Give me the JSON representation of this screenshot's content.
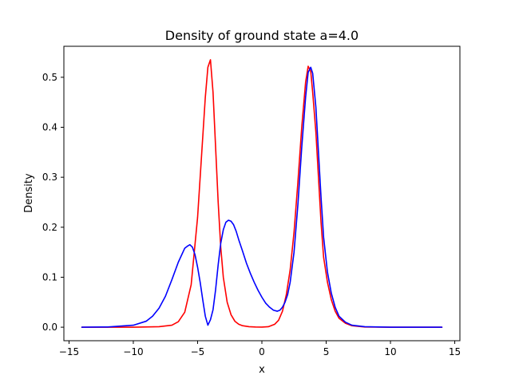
{
  "chart_data": {
    "type": "line",
    "title": "Density of ground state a=4.0",
    "xlabel": "x",
    "ylabel": "Density",
    "xlim": [
      -15.4,
      15.4
    ],
    "ylim": [
      -0.027,
      0.562
    ],
    "grid": false,
    "xticks": [
      -15,
      -10,
      -5,
      0,
      5,
      10,
      15
    ],
    "xtick_labels": [
      "−15",
      "−10",
      "−5",
      "0",
      "5",
      "10",
      "15"
    ],
    "yticks": [
      0.0,
      0.1,
      0.2,
      0.3,
      0.4,
      0.5
    ],
    "ytick_labels": [
      "0.0",
      "0.1",
      "0.2",
      "0.3",
      "0.4",
      "0.5"
    ],
    "series": [
      {
        "name": "red",
        "color": "#ff0000",
        "x": [
          -14,
          -12,
          -10,
          -8,
          -7,
          -6.5,
          -6,
          -5.5,
          -5,
          -4.7,
          -4.4,
          -4.2,
          -4.0,
          -3.8,
          -3.6,
          -3.4,
          -3.2,
          -3.0,
          -2.7,
          -2.4,
          -2.1,
          -1.8,
          -1.5,
          -1.0,
          -0.5,
          0,
          0.5,
          1.0,
          1.3,
          1.6,
          1.9,
          2.2,
          2.5,
          2.8,
          3.1,
          3.4,
          3.6,
          3.8,
          3.95,
          4.2,
          4.4,
          4.6,
          4.8,
          5.1,
          5.4,
          5.7,
          6.0,
          6.5,
          7.0,
          8.0,
          10.0,
          12.0,
          14.0
        ],
        "values": [
          0.0,
          0.0,
          0.0,
          0.001,
          0.004,
          0.011,
          0.03,
          0.085,
          0.22,
          0.34,
          0.46,
          0.52,
          0.535,
          0.47,
          0.36,
          0.25,
          0.16,
          0.1,
          0.05,
          0.025,
          0.012,
          0.006,
          0.003,
          0.001,
          0.0005,
          0.0003,
          0.001,
          0.006,
          0.014,
          0.032,
          0.065,
          0.115,
          0.19,
          0.29,
          0.4,
          0.49,
          0.522,
          0.512,
          0.47,
          0.39,
          0.3,
          0.21,
          0.14,
          0.09,
          0.055,
          0.032,
          0.018,
          0.008,
          0.003,
          0.0005,
          0.0,
          0.0,
          0.0
        ]
      },
      {
        "name": "blue",
        "color": "#0000ff",
        "x": [
          -14,
          -12,
          -10,
          -9,
          -8.5,
          -8,
          -7.5,
          -7,
          -6.5,
          -6,
          -5.8,
          -5.6,
          -5.4,
          -5.2,
          -5.0,
          -4.8,
          -4.6,
          -4.4,
          -4.2,
          -4.0,
          -3.8,
          -3.6,
          -3.4,
          -3.2,
          -3.0,
          -2.8,
          -2.6,
          -2.4,
          -2.2,
          -2.0,
          -1.8,
          -1.5,
          -1.2,
          -0.9,
          -0.6,
          -0.3,
          0,
          0.3,
          0.6,
          0.9,
          1.2,
          1.4,
          1.6,
          1.8,
          2.0,
          2.2,
          2.5,
          2.8,
          3.1,
          3.4,
          3.6,
          3.8,
          3.95,
          4.2,
          4.4,
          4.6,
          4.8,
          5.1,
          5.4,
          5.7,
          6.0,
          6.5,
          7.0,
          8.0,
          10.0,
          12.0,
          14.0
        ],
        "values": [
          0.0,
          0.0005,
          0.004,
          0.012,
          0.022,
          0.038,
          0.062,
          0.095,
          0.13,
          0.158,
          0.162,
          0.165,
          0.16,
          0.145,
          0.12,
          0.09,
          0.055,
          0.022,
          0.004,
          0.015,
          0.035,
          0.075,
          0.125,
          0.168,
          0.195,
          0.21,
          0.214,
          0.212,
          0.205,
          0.192,
          0.175,
          0.152,
          0.128,
          0.108,
          0.09,
          0.074,
          0.06,
          0.048,
          0.04,
          0.034,
          0.032,
          0.034,
          0.04,
          0.05,
          0.065,
          0.09,
          0.15,
          0.245,
          0.36,
          0.46,
          0.51,
          0.52,
          0.508,
          0.44,
          0.35,
          0.26,
          0.18,
          0.11,
          0.068,
          0.04,
          0.022,
          0.01,
          0.004,
          0.001,
          0.0,
          0.0,
          0.0
        ]
      }
    ]
  }
}
